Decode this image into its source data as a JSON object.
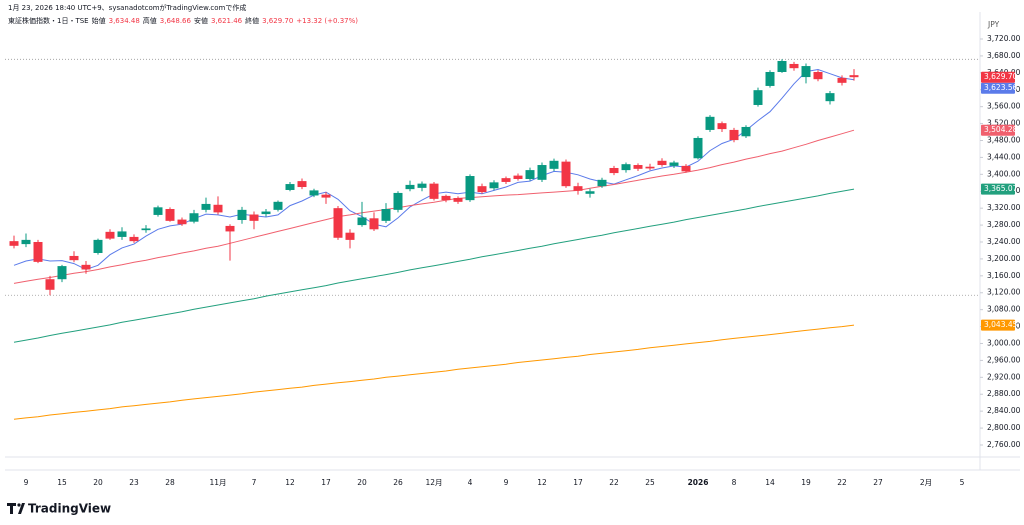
{
  "attribution": "1月 23, 2026 18:40 UTC+9、sysanadotcomがTradingView.comで作成",
  "logo": "TradingView",
  "chart_data": {
    "type": "candlestick",
    "title": "東証株価指数・1日・TSE",
    "ohlc_legend": [
      {
        "label": "始値",
        "value": "3,634.48"
      },
      {
        "label": "高値",
        "value": "3,648.66"
      },
      {
        "label": "安値",
        "value": "3,621.46"
      },
      {
        "label": "終値",
        "value": "3,629.70"
      }
    ],
    "change_label": "+13.32 (+0.37%)",
    "currency": "JPY",
    "up_color": "#089981",
    "down_color": "#f23645",
    "ylim": [
      2731.6,
      3767.3
    ],
    "yticks": [
      {
        "value": 2760,
        "label": "2,760.00"
      },
      {
        "value": 2800,
        "label": "2,800.00"
      },
      {
        "value": 2840,
        "label": "2,840.00"
      },
      {
        "value": 2880,
        "label": "2,880.00"
      },
      {
        "value": 2920,
        "label": "2,920.00"
      },
      {
        "value": 2960,
        "label": "2,960.00"
      },
      {
        "value": 3000,
        "label": "3,000.00"
      },
      {
        "value": 3040,
        "label": "3,040.00"
      },
      {
        "value": 3080,
        "label": "3,080.00"
      },
      {
        "value": 3120,
        "label": "3,120.00"
      },
      {
        "value": 3160,
        "label": "3,160.00"
      },
      {
        "value": 3200,
        "label": "3,200.00"
      },
      {
        "value": 3240,
        "label": "3,240.00"
      },
      {
        "value": 3280,
        "label": "3,280.00"
      },
      {
        "value": 3320,
        "label": "3,320.00"
      },
      {
        "value": 3360,
        "label": "3,360.00"
      },
      {
        "value": 3400,
        "label": "3,400.00"
      },
      {
        "value": 3440,
        "label": "3,440.00"
      },
      {
        "value": 3480,
        "label": "3,480.00"
      },
      {
        "value": 3520,
        "label": "3,520.00"
      },
      {
        "value": 3560,
        "label": "3,560.00"
      },
      {
        "value": 3600,
        "label": "3,600.00"
      },
      {
        "value": 3640,
        "label": "3,640.00"
      },
      {
        "value": 3680,
        "label": "3,680.00"
      },
      {
        "value": 3720,
        "label": "3,720.00"
      }
    ],
    "grid": false,
    "categories": [
      null,
      "9",
      null,
      null,
      "15",
      null,
      null,
      "20",
      null,
      null,
      "23",
      null,
      null,
      "28",
      null,
      null,
      null,
      "11月",
      null,
      null,
      "7",
      null,
      null,
      "12",
      null,
      null,
      "17",
      null,
      null,
      "20",
      null,
      null,
      "26",
      null,
      null,
      "12月",
      null,
      null,
      "4",
      null,
      null,
      "9",
      null,
      null,
      "12",
      null,
      null,
      "17",
      null,
      null,
      "22",
      null,
      null,
      "25",
      null,
      null,
      null,
      "2026",
      null,
      null,
      "8",
      null,
      null,
      "14",
      null,
      null,
      "19",
      null,
      null,
      "22",
      null,
      null,
      "27",
      null,
      null,
      null,
      "2月",
      null,
      null,
      "5",
      null
    ],
    "candles": {
      "open": [
        3242,
        3235,
        3240,
        3152,
        3152,
        3207,
        3186,
        3214,
        3264,
        3252,
        3252,
        3268,
        3304,
        3318,
        3293,
        3288,
        3316,
        3328,
        3278,
        3292,
        3305,
        3306,
        3316,
        3363,
        3384,
        3350,
        3352,
        3320,
        3262,
        3280,
        3296,
        3290,
        3316,
        3365,
        3368,
        3378,
        3349,
        3344,
        3339,
        3372,
        3367,
        3391,
        3397,
        3389,
        3387,
        3413,
        3430,
        3372,
        3354,
        3372,
        3415,
        3410,
        3422,
        3418,
        3432,
        3420,
        3420,
        3438,
        3505,
        3521,
        3505,
        3490,
        3564,
        3609,
        3642,
        3661,
        3630,
        3642,
        3573,
        3628,
        3634.48,
        null,
        null,
        null,
        null,
        null,
        null,
        null,
        null,
        null,
        null
      ],
      "high": [
        3255,
        3260,
        3245,
        3160,
        3186,
        3218,
        3195,
        3248,
        3270,
        3275,
        3258,
        3280,
        3326,
        3322,
        3298,
        3316,
        3345,
        3348,
        3282,
        3323,
        3312,
        3318,
        3338,
        3382,
        3390,
        3366,
        3358,
        3325,
        3270,
        3335,
        3310,
        3332,
        3360,
        3385,
        3383,
        3382,
        3352,
        3348,
        3400,
        3378,
        3386,
        3395,
        3402,
        3416,
        3428,
        3437,
        3435,
        3380,
        3366,
        3392,
        3420,
        3428,
        3426,
        3425,
        3438,
        3432,
        3424,
        3490,
        3540,
        3525,
        3510,
        3516,
        3605,
        3646,
        3672,
        3666,
        3662,
        3646,
        3597,
        3634,
        3648.66,
        null,
        null,
        null,
        null,
        null,
        null,
        null,
        null,
        null,
        null
      ],
      "low": [
        3225,
        3228,
        3190,
        3114,
        3145,
        3192,
        3165,
        3210,
        3245,
        3245,
        3238,
        3262,
        3300,
        3288,
        3278,
        3284,
        3310,
        3305,
        3196,
        3283,
        3270,
        3300,
        3312,
        3360,
        3365,
        3346,
        3330,
        3245,
        3225,
        3276,
        3266,
        3285,
        3310,
        3360,
        3360,
        3338,
        3334,
        3330,
        3335,
        3354,
        3362,
        3377,
        3385,
        3385,
        3382,
        3408,
        3368,
        3352,
        3345,
        3368,
        3398,
        3404,
        3408,
        3410,
        3418,
        3415,
        3404,
        3435,
        3500,
        3500,
        3476,
        3486,
        3560,
        3605,
        3640,
        3645,
        3615,
        3620,
        3565,
        3610,
        3621.46,
        null,
        null,
        null,
        null,
        null,
        null,
        null,
        null,
        null,
        null
      ],
      "close": [
        3231,
        3245,
        3193,
        3127,
        3183,
        3197,
        3175,
        3245,
        3248,
        3265,
        3242,
        3272,
        3322,
        3290,
        3282,
        3308,
        3330,
        3310,
        3265,
        3316,
        3290,
        3312,
        3335,
        3377,
        3370,
        3362,
        3345,
        3250,
        3245,
        3298,
        3270,
        3318,
        3356,
        3375,
        3378,
        3342,
        3339,
        3335,
        3396,
        3358,
        3381,
        3382,
        3389,
        3410,
        3422,
        3432,
        3372,
        3361,
        3360,
        3387,
        3403,
        3424,
        3413,
        3414,
        3422,
        3428,
        3407,
        3486,
        3536,
        3507,
        3481,
        3512,
        3599,
        3642,
        3668,
        3651,
        3656,
        3625,
        3592,
        3616.38,
        3629.7,
        null,
        null,
        null,
        null,
        null,
        null,
        null,
        null,
        null,
        null
      ],
      "last_label": "3,629.70"
    },
    "series": [
      {
        "color": "#5b7bea",
        "last_label": "3,623.56",
        "values": [
          3185,
          3195,
          3200,
          3195,
          3196,
          3189,
          3175,
          3185,
          3210,
          3226,
          3235,
          3254,
          3270,
          3278,
          3282,
          3295,
          3306,
          3304,
          3299,
          3306,
          3302,
          3299,
          3304,
          3326,
          3337,
          3351,
          3358,
          3341,
          3314,
          3300,
          3282,
          3276,
          3297,
          3323,
          3339,
          3354,
          3358,
          3354,
          3358,
          3354,
          3362,
          3370,
          3381,
          3384,
          3397,
          3407,
          3405,
          3399,
          3389,
          3382,
          3377,
          3387,
          3397,
          3408,
          3415,
          3420,
          3417,
          3431,
          3456,
          3473,
          3483,
          3504,
          3527,
          3548,
          3580,
          3614,
          3643,
          3648,
          3638,
          3628,
          3623.56,
          null,
          null,
          null,
          null,
          null,
          null,
          null,
          null,
          null,
          null
        ]
      },
      {
        "color": "#f0606e",
        "last_label": "3,504.28",
        "values": [
          3142,
          3147,
          3152,
          3156,
          3161,
          3166,
          3170,
          3175,
          3181,
          3186,
          3192,
          3197,
          3203,
          3208,
          3214,
          3219,
          3225,
          3230,
          3237,
          3244,
          3251,
          3258,
          3265,
          3272,
          3279,
          3286,
          3293,
          3300,
          3304,
          3309,
          3313,
          3317,
          3321,
          3326,
          3330,
          3334,
          3339,
          3343,
          3345,
          3347,
          3349,
          3351,
          3352,
          3354,
          3356,
          3358,
          3360,
          3362,
          3367,
          3372,
          3376,
          3381,
          3386,
          3391,
          3396,
          3400,
          3405,
          3410,
          3416,
          3423,
          3429,
          3436,
          3442,
          3449,
          3455,
          3463,
          3471,
          3480,
          3488,
          3496,
          3504.28,
          null,
          null,
          null,
          null,
          null,
          null,
          null,
          null,
          null,
          null
        ]
      },
      {
        "color": "#22a07e",
        "last_label": "3,365.07",
        "values": [
          3003,
          3008,
          3013,
          3019,
          3024,
          3029,
          3034,
          3039,
          3044,
          3050,
          3055,
          3060,
          3065,
          3070,
          3075,
          3081,
          3086,
          3091,
          3096,
          3101,
          3106,
          3112,
          3117,
          3122,
          3127,
          3132,
          3137,
          3143,
          3148,
          3153,
          3158,
          3163,
          3168,
          3174,
          3179,
          3184,
          3189,
          3194,
          3199,
          3205,
          3210,
          3215,
          3220,
          3225,
          3230,
          3236,
          3241,
          3246,
          3251,
          3256,
          3262,
          3267,
          3272,
          3277,
          3282,
          3287,
          3293,
          3298,
          3303,
          3308,
          3313,
          3318,
          3324,
          3329,
          3334,
          3339,
          3344,
          3349,
          3355,
          3360,
          3365.07,
          null,
          null,
          null,
          null,
          null,
          null,
          null,
          null,
          null,
          null
        ]
      },
      {
        "color": "#ff9800",
        "last_label": "3,043.45",
        "values": [
          2821,
          2824,
          2827,
          2831,
          2834,
          2837,
          2840,
          2843,
          2846,
          2850,
          2853,
          2856,
          2859,
          2862,
          2866,
          2869,
          2872,
          2875,
          2878,
          2881,
          2885,
          2888,
          2891,
          2894,
          2897,
          2901,
          2904,
          2907,
          2910,
          2913,
          2916,
          2920,
          2923,
          2926,
          2929,
          2932,
          2935,
          2939,
          2942,
          2945,
          2948,
          2951,
          2955,
          2958,
          2961,
          2964,
          2967,
          2970,
          2974,
          2977,
          2980,
          2983,
          2986,
          2990,
          2993,
          2996,
          2999,
          3002,
          3005,
          3009,
          3012,
          3015,
          3018,
          3021,
          3024,
          3028,
          3031,
          3034,
          3037,
          3040,
          3043.45,
          null,
          null,
          null,
          null,
          null,
          null,
          null,
          null,
          null,
          null
        ]
      }
    ]
  }
}
